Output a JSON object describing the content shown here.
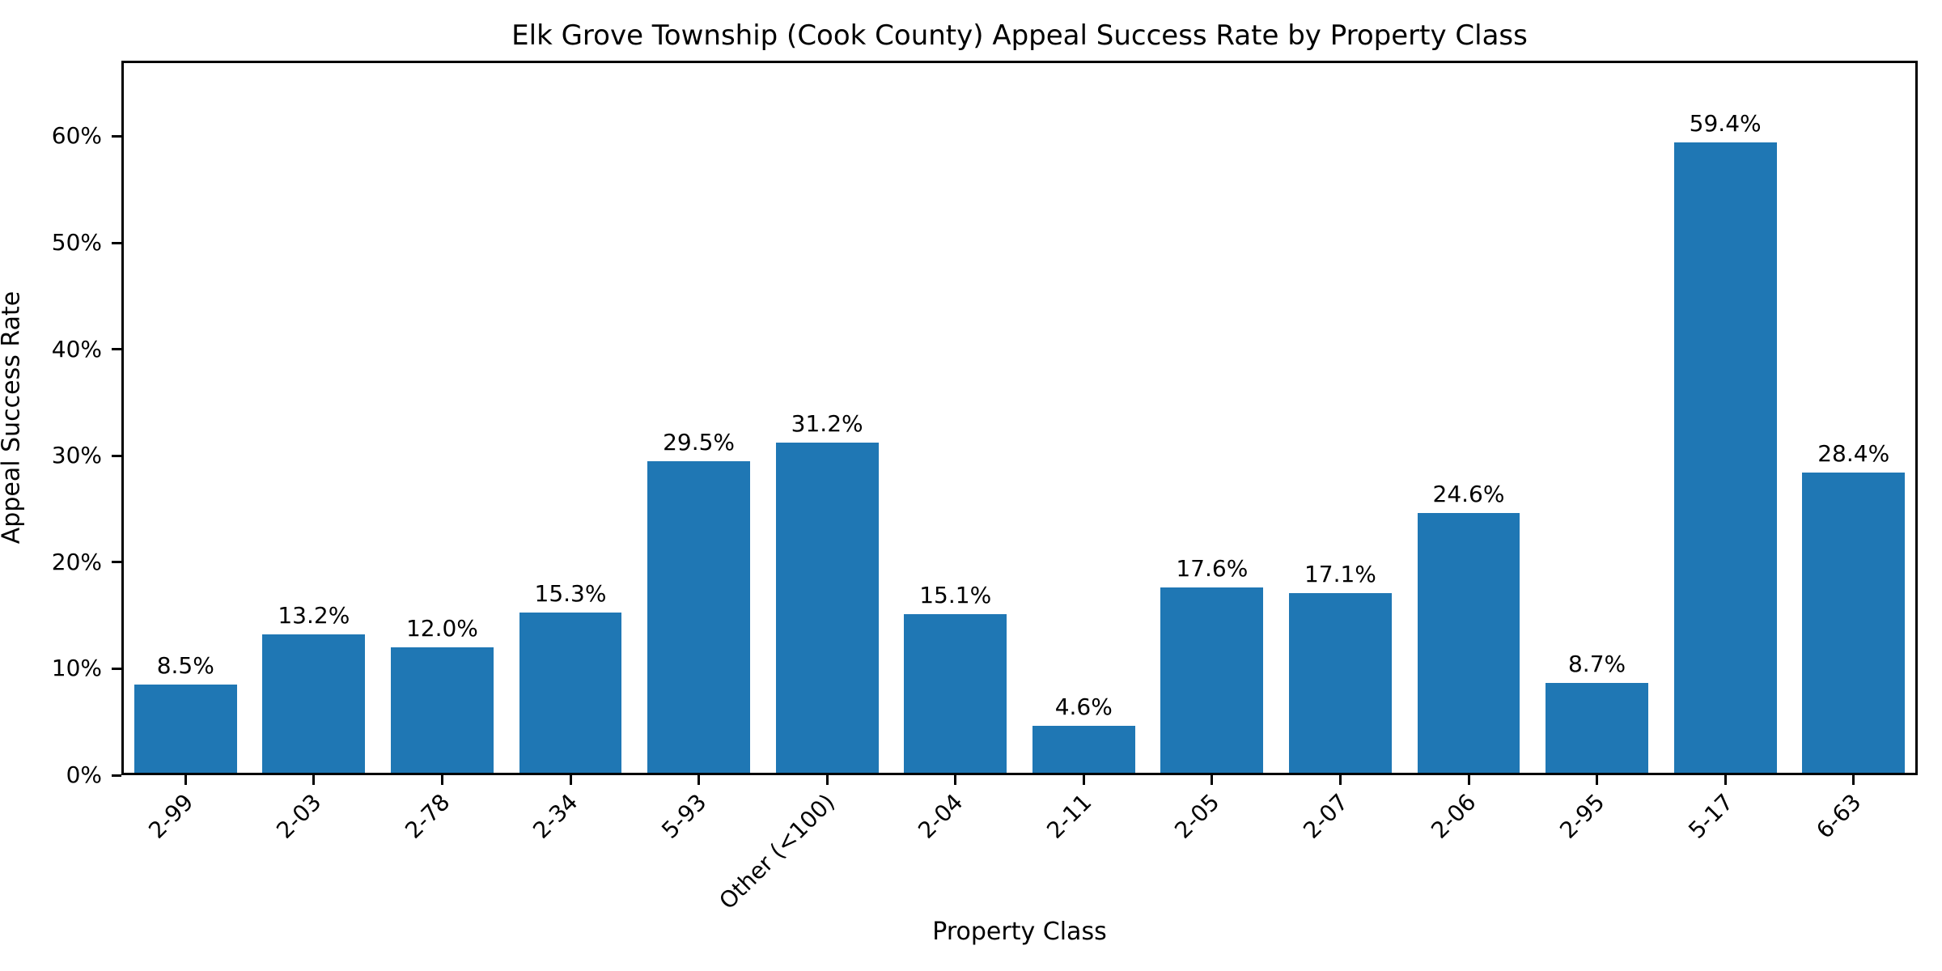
{
  "chart_data": {
    "type": "bar",
    "title": "Elk Grove Township (Cook County) Appeal Success Rate by Property Class",
    "xlabel": "Property Class",
    "ylabel": "Appeal Success Rate",
    "categories": [
      "2-99",
      "2-03",
      "2-78",
      "2-34",
      "5-93",
      "Other (<100)",
      "2-04",
      "2-11",
      "2-05",
      "2-07",
      "2-06",
      "2-95",
      "5-17",
      "6-63"
    ],
    "values": [
      8.5,
      13.2,
      12.0,
      15.3,
      29.5,
      31.2,
      15.1,
      4.6,
      17.6,
      17.1,
      24.6,
      8.7,
      59.4,
      28.4
    ],
    "value_labels": [
      "8.5%",
      "13.2%",
      "12.0%",
      "15.3%",
      "29.5%",
      "31.2%",
      "15.1%",
      "4.6%",
      "17.6%",
      "17.1%",
      "24.6%",
      "8.7%",
      "59.4%",
      "28.4%"
    ],
    "y_tick_values": [
      0,
      10,
      20,
      30,
      40,
      50,
      60
    ],
    "y_tick_labels": [
      "0%",
      "10%",
      "20%",
      "30%",
      "40%",
      "50%",
      "60%"
    ],
    "ylim": [
      0,
      67.1
    ],
    "x_tick_rotation_deg": 45,
    "grid": false,
    "legend": null,
    "bar_color": "#1f77b4",
    "axis_color": "#000000",
    "background_color": "#ffffff"
  }
}
